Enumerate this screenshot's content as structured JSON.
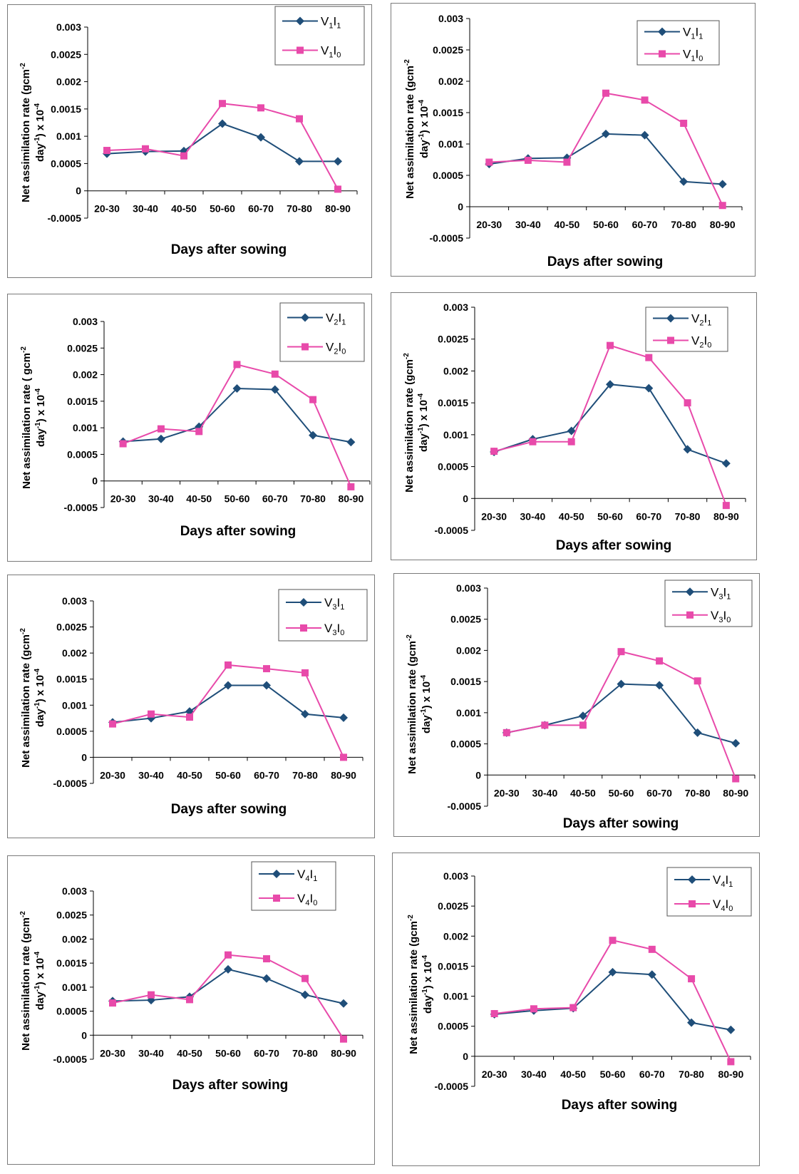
{
  "chart_data": [
    {
      "type": "line",
      "categories": [
        "20-30",
        "30-40",
        "40-50",
        "50-60",
        "60-70",
        "70-80",
        "80-90"
      ],
      "series": [
        {
          "name": "V1I1",
          "sub_a": "1",
          "sub_b": "1",
          "color": "#1f4e79",
          "marker": "diamond",
          "values": [
            0.00068,
            0.00072,
            0.00073,
            0.00123,
            0.00098,
            0.00054,
            0.00054
          ]
        },
        {
          "name": "V1I0",
          "sub_a": "1",
          "sub_b": "0",
          "color": "#e84aaa",
          "marker": "square",
          "values": [
            0.00074,
            0.00077,
            0.00064,
            0.0016,
            0.00152,
            0.00132,
            3e-05
          ]
        }
      ],
      "xlabel": "Days after sowing",
      "ylabel_line1": "Net assimilation rate (gcm",
      "ylabel_sup1": "-2",
      "ylabel_line2a": "day",
      "ylabel_sup2": "-1",
      "ylabel_line2b": ") x 10",
      "ylabel_sup3": "-4",
      "yticks": [
        "0.003",
        "0.0025",
        "0.002",
        "0.0015",
        "0.001",
        "0.0005",
        "0",
        "-0.0005"
      ],
      "ylim": [
        -0.0005,
        0.003
      ],
      "legend": "top-right",
      "grid": false
    },
    {
      "type": "line",
      "categories": [
        "20-30",
        "30-40",
        "40-50",
        "50-60",
        "60-70",
        "70-80",
        "80-90"
      ],
      "series": [
        {
          "name": "V1I1",
          "sub_a": "1",
          "sub_b": "1",
          "color": "#1f4e79",
          "marker": "diamond",
          "values": [
            0.00068,
            0.00077,
            0.00078,
            0.00116,
            0.00114,
            0.0004,
            0.00036
          ]
        },
        {
          "name": "V1I0",
          "sub_a": "1",
          "sub_b": "0",
          "color": "#e84aaa",
          "marker": "square",
          "values": [
            0.00071,
            0.00074,
            0.00071,
            0.00181,
            0.0017,
            0.00133,
            2e-05
          ]
        }
      ],
      "xlabel": "Days after sowing",
      "ylabel_line1": "Net assimilation rate (gcm",
      "ylabel_sup1": "-2",
      "ylabel_line2a": "day",
      "ylabel_sup2": "-1",
      "ylabel_line2b": ") x 10",
      "ylabel_sup3": "-4",
      "yticks": [
        "0.003",
        "0.0025",
        "0.002",
        "0.0015",
        "0.001",
        "0.0005",
        "0",
        "-0.0005"
      ],
      "ylim": [
        -0.0005,
        0.003
      ],
      "legend": "top-right",
      "grid": false
    },
    {
      "type": "line",
      "categories": [
        "20-30",
        "30-40",
        "40-50",
        "50-60",
        "60-70",
        "70-80",
        "80-90"
      ],
      "series": [
        {
          "name": "V2I1",
          "sub_a": "2",
          "sub_b": "1",
          "color": "#1f4e79",
          "marker": "diamond",
          "values": [
            0.00074,
            0.00079,
            0.00102,
            0.00174,
            0.00172,
            0.00086,
            0.00073
          ]
        },
        {
          "name": "V2I0",
          "sub_a": "2",
          "sub_b": "0",
          "color": "#e84aaa",
          "marker": "square",
          "values": [
            0.0007,
            0.00098,
            0.00093,
            0.00219,
            0.00201,
            0.00153,
            -0.00011
          ]
        }
      ],
      "xlabel": "Days after sowing",
      "ylabel_line1": "Net assimilation rate ( gcm",
      "ylabel_sup1": "-2",
      "ylabel_line2a": "day",
      "ylabel_sup2": "-1",
      "ylabel_line2b": ") x 10",
      "ylabel_sup3": "-4",
      "yticks": [
        "0.003",
        "0.0025",
        "0.002",
        "0.0015",
        "0.001",
        "0.0005",
        "0",
        "-0.0005"
      ],
      "ylim": [
        -0.0005,
        0.003
      ],
      "legend": "top-right",
      "grid": false
    },
    {
      "type": "line",
      "categories": [
        "20-30",
        "30-40",
        "40-50",
        "50-60",
        "60-70",
        "70-80",
        "80-90"
      ],
      "series": [
        {
          "name": "V2I1",
          "sub_a": "2",
          "sub_b": "1",
          "color": "#1f4e79",
          "marker": "diamond",
          "values": [
            0.00073,
            0.00093,
            0.00106,
            0.00179,
            0.00173,
            0.00077,
            0.00055
          ]
        },
        {
          "name": "V2I0",
          "sub_a": "2",
          "sub_b": "0",
          "color": "#e84aaa",
          "marker": "square",
          "values": [
            0.00074,
            0.00089,
            0.00089,
            0.0024,
            0.00221,
            0.0015,
            -0.00011
          ]
        }
      ],
      "xlabel": "Days after sowing",
      "ylabel_line1": "Net assimilation rate (gcm",
      "ylabel_sup1": "-2",
      "ylabel_line2a": "day",
      "ylabel_sup2": "-1",
      "ylabel_line2b": ") x 10",
      "ylabel_sup3": "-4",
      "yticks": [
        "0.003",
        "0.0025",
        "0.002",
        "0.0015",
        "0.001",
        "0.0005",
        "0",
        "-0.0005"
      ],
      "ylim": [
        -0.0005,
        0.003
      ],
      "legend": "top-right",
      "grid": false
    },
    {
      "type": "line",
      "categories": [
        "20-30",
        "30-40",
        "40-50",
        "50-60",
        "60-70",
        "70-80",
        "80-90"
      ],
      "series": [
        {
          "name": "V3I1",
          "sub_a": "3",
          "sub_b": "1",
          "color": "#1f4e79",
          "marker": "diamond",
          "values": [
            0.00067,
            0.00075,
            0.00088,
            0.00138,
            0.00138,
            0.00083,
            0.00076
          ]
        },
        {
          "name": "V3I0",
          "sub_a": "3",
          "sub_b": "0",
          "color": "#e84aaa",
          "marker": "square",
          "values": [
            0.00064,
            0.00083,
            0.00077,
            0.00177,
            0.0017,
            0.00162,
            0.0
          ]
        }
      ],
      "xlabel": "Days after sowing",
      "ylabel_line1": "Net assimilation rate (gcm",
      "ylabel_sup1": "-2",
      "ylabel_line2a": "day",
      "ylabel_sup2": "-1",
      "ylabel_line2b": ") x 10",
      "ylabel_sup3": "-4",
      "yticks": [
        "0.003",
        "0.0025",
        "0.002",
        "0.0015",
        "0.001",
        "0.0005",
        "0",
        "-0.0005"
      ],
      "ylim": [
        -0.0005,
        0.003
      ],
      "legend": "top-right",
      "grid": false
    },
    {
      "type": "line",
      "categories": [
        "20-30",
        "30-40",
        "40-50",
        "50-60",
        "60-70",
        "70-80",
        "80-90"
      ],
      "series": [
        {
          "name": "V3I1",
          "sub_a": "3",
          "sub_b": "1",
          "color": "#1f4e79",
          "marker": "diamond",
          "values": [
            0.00068,
            0.0008,
            0.00095,
            0.00146,
            0.00144,
            0.00068,
            0.00051
          ]
        },
        {
          "name": "V3I0",
          "sub_a": "3",
          "sub_b": "0",
          "color": "#e84aaa",
          "marker": "square",
          "values": [
            0.00068,
            0.0008,
            0.0008,
            0.00198,
            0.00183,
            0.00151,
            -6e-05
          ]
        }
      ],
      "xlabel": "Days after sowing",
      "ylabel_line1": "Net assimilation rate (gcm",
      "ylabel_sup1": "-2",
      "ylabel_line2a": "day",
      "ylabel_sup2": "-1",
      "ylabel_line2b": ") x 10",
      "ylabel_sup3": "-4",
      "yticks": [
        "0.003",
        "0.0025",
        "0.002",
        "0.0015",
        "0.001",
        "0.0005",
        "0",
        "-0.0005"
      ],
      "ylim": [
        -0.0005,
        0.003
      ],
      "legend": "top-right",
      "grid": false
    },
    {
      "type": "line",
      "categories": [
        "20-30",
        "30-40",
        "40-50",
        "50-60",
        "60-70",
        "70-80",
        "80-90"
      ],
      "series": [
        {
          "name": "V4I1",
          "sub_a": "4",
          "sub_b": "1",
          "color": "#1f4e79",
          "marker": "diamond",
          "values": [
            0.00071,
            0.00073,
            0.0008,
            0.00137,
            0.00118,
            0.00084,
            0.00066
          ]
        },
        {
          "name": "V4I0",
          "sub_a": "4",
          "sub_b": "0",
          "color": "#e84aaa",
          "marker": "square",
          "values": [
            0.00067,
            0.00084,
            0.00074,
            0.00167,
            0.00159,
            0.00118,
            -8e-05
          ]
        }
      ],
      "xlabel": "Days after sowing",
      "ylabel_line1": "Net assimilation rate (gcm",
      "ylabel_sup1": "-2",
      "ylabel_line2a": "day",
      "ylabel_sup2": "-1",
      "ylabel_line2b": ") x 10",
      "ylabel_sup3": "-4",
      "yticks": [
        "0.003",
        "0.0025",
        "0.002",
        "0.0015",
        "0.001",
        "0.0005",
        "0",
        "-0.0005"
      ],
      "ylim": [
        -0.0005,
        0.003
      ],
      "legend": "top-right",
      "grid": false
    },
    {
      "type": "line",
      "categories": [
        "20-30",
        "30-40",
        "40-50",
        "50-60",
        "60-70",
        "70-80",
        "80-90"
      ],
      "series": [
        {
          "name": "V4I1",
          "sub_a": "4",
          "sub_b": "1",
          "color": "#1f4e79",
          "marker": "diamond",
          "values": [
            0.0007,
            0.00076,
            0.0008,
            0.0014,
            0.00136,
            0.00056,
            0.00044
          ]
        },
        {
          "name": "V4I0",
          "sub_a": "4",
          "sub_b": "0",
          "color": "#e84aaa",
          "marker": "square",
          "values": [
            0.00071,
            0.00079,
            0.00081,
            0.00193,
            0.00178,
            0.00129,
            -9e-05
          ]
        }
      ],
      "xlabel": "Days after sowing",
      "ylabel_line1": "Net assimilation rate (gcm",
      "ylabel_sup1": "-2",
      "ylabel_line2a": "day",
      "ylabel_sup2": "-1",
      "ylabel_line2b": ") x 10",
      "ylabel_sup3": "-4",
      "yticks": [
        "0.003",
        "0.0025",
        "0.002",
        "0.0015",
        "0.001",
        "0.0005",
        "0",
        "-0.0005"
      ],
      "ylim": [
        -0.0005,
        0.003
      ],
      "legend": "top-right",
      "grid": false
    }
  ]
}
